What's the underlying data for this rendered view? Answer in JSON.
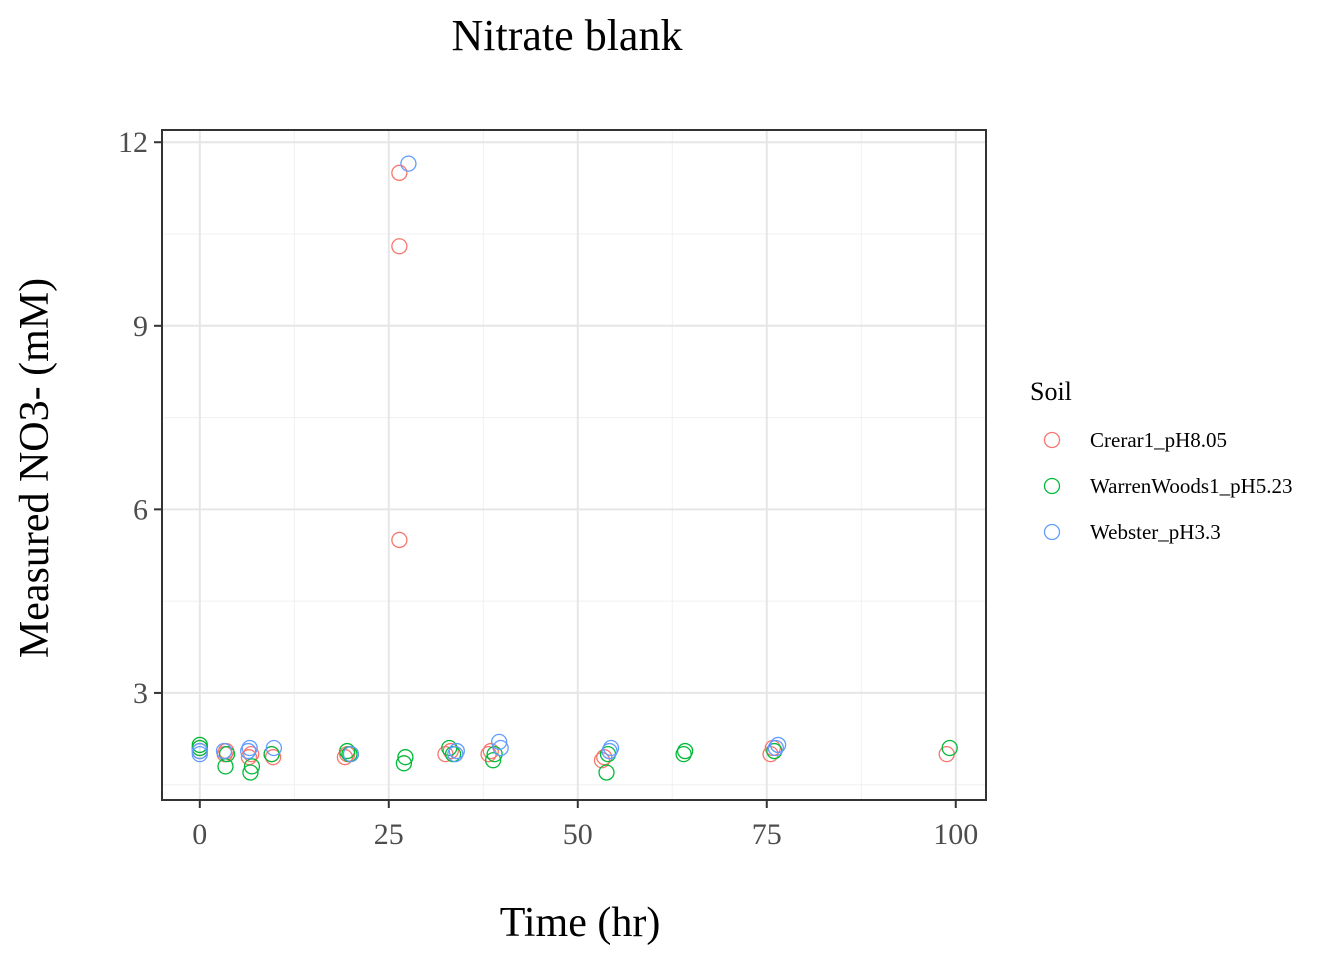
{
  "chart_data": {
    "type": "scatter",
    "title": "Nitrate blank",
    "xlabel": "Time (hr)",
    "ylabel": "Measured NO3- (mM)",
    "xlim": [
      -5,
      104
    ],
    "ylim": [
      1.25,
      12.2
    ],
    "x_ticks": [
      0,
      25,
      50,
      75,
      100
    ],
    "y_ticks": [
      3,
      6,
      9,
      12
    ],
    "x_tick_labels": [
      "0",
      "25",
      "50",
      "75",
      "100"
    ],
    "y_tick_labels": [
      "3",
      "6",
      "9",
      "12"
    ],
    "grid": true,
    "marker": "open-circle",
    "legend": {
      "title": "Soil",
      "placement": "right"
    },
    "series": [
      {
        "name": "Crerar1_pH8.05",
        "color": "#F8766D",
        "points": [
          [
            0,
            2.05
          ],
          [
            0,
            2.1
          ],
          [
            3.3,
            2.0
          ],
          [
            3.5,
            2.05
          ],
          [
            6.5,
            1.95
          ],
          [
            6.8,
            2.0
          ],
          [
            9.5,
            2.0
          ],
          [
            9.7,
            1.95
          ],
          [
            19.2,
            1.95
          ],
          [
            19.5,
            2.0
          ],
          [
            26.4,
            11.5
          ],
          [
            26.4,
            10.3
          ],
          [
            26.4,
            5.5
          ],
          [
            32.5,
            2.0
          ],
          [
            33.2,
            2.05
          ],
          [
            38.2,
            2.0
          ],
          [
            38.5,
            2.05
          ],
          [
            53.2,
            1.9
          ],
          [
            53.5,
            1.95
          ],
          [
            75.5,
            2.0
          ],
          [
            75.8,
            2.1
          ],
          [
            98.8,
            2.0
          ]
        ]
      },
      {
        "name": "WarrenWoods1_pH5.23",
        "color": "#00BA38",
        "points": [
          [
            0,
            2.1
          ],
          [
            0,
            2.15
          ],
          [
            3.4,
            1.8
          ],
          [
            3.6,
            2.0
          ],
          [
            6.7,
            1.7
          ],
          [
            6.9,
            1.8
          ],
          [
            9.5,
            2.0
          ],
          [
            19.5,
            2.05
          ],
          [
            19.8,
            2.0
          ],
          [
            27.0,
            1.85
          ],
          [
            27.2,
            1.95
          ],
          [
            33.0,
            2.1
          ],
          [
            33.5,
            2.0
          ],
          [
            38.8,
            1.9
          ],
          [
            39.0,
            2.0
          ],
          [
            53.8,
            1.7
          ],
          [
            54.0,
            2.0
          ],
          [
            64.0,
            2.0
          ],
          [
            64.2,
            2.05
          ],
          [
            76.0,
            2.05
          ],
          [
            99.2,
            2.1
          ]
        ]
      },
      {
        "name": "Webster_pH3.3",
        "color": "#619CFF",
        "points": [
          [
            0,
            2.0
          ],
          [
            0,
            2.05
          ],
          [
            3.2,
            2.05
          ],
          [
            6.4,
            2.05
          ],
          [
            6.6,
            2.1
          ],
          [
            9.8,
            2.1
          ],
          [
            20.0,
            2.0
          ],
          [
            27.6,
            11.65
          ],
          [
            33.8,
            2.0
          ],
          [
            34.0,
            2.05
          ],
          [
            39.6,
            2.2
          ],
          [
            39.8,
            2.1
          ],
          [
            54.2,
            2.05
          ],
          [
            54.4,
            2.1
          ],
          [
            76.2,
            2.1
          ],
          [
            76.5,
            2.15
          ]
        ]
      }
    ]
  }
}
